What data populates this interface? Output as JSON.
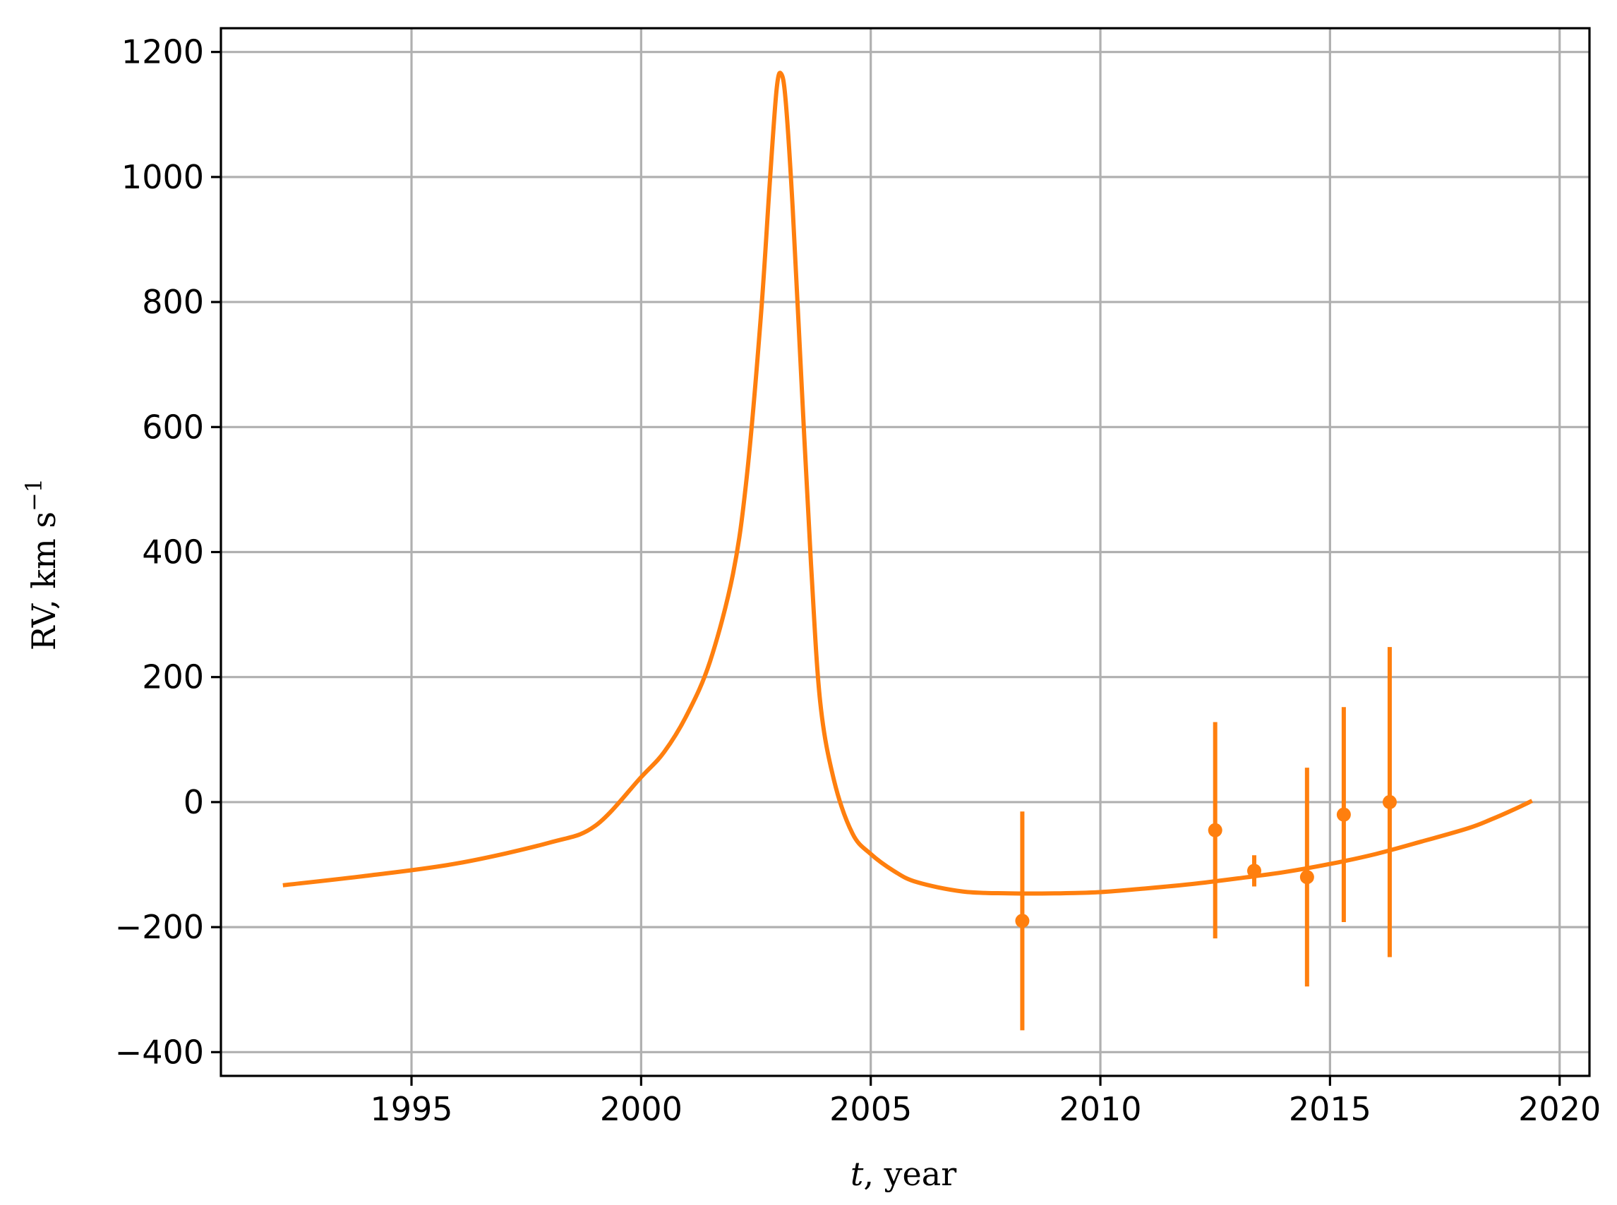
{
  "chart_data": {
    "type": "line",
    "title": "",
    "xlabel": {
      "var": "t",
      "rest": ", year"
    },
    "ylabel": {
      "text": "RV,  km s",
      "sup": "−1"
    },
    "xlim": [
      1990.85,
      2020.65
    ],
    "ylim": [
      -438,
      1238
    ],
    "xticks": [
      1995,
      2000,
      2005,
      2010,
      2015,
      2020
    ],
    "yticks": [
      -400,
      -200,
      0,
      200,
      400,
      600,
      800,
      1000,
      1200
    ],
    "ytick_labels": [
      "−400",
      "−200",
      "0",
      "200",
      "400",
      "600",
      "800",
      "1000",
      "1200"
    ],
    "grid": true,
    "color": "#ff7f0e",
    "model_curve": {
      "x": [
        1992.2,
        1994.0,
        1996.0,
        1998.0,
        1999.0,
        2000.0,
        2000.5,
        2001.0,
        2001.5,
        2002.0,
        2002.3,
        2002.6,
        2002.8,
        2002.95,
        2003.05,
        2003.15,
        2003.3,
        2003.5,
        2003.7,
        2003.9,
        2004.2,
        2004.6,
        2005.0,
        2005.5,
        2006.0,
        2007.0,
        2008.0,
        2009.0,
        2010.0,
        2011.0,
        2012.0,
        2013.0,
        2014.0,
        2015.0,
        2016.0,
        2017.0,
        2018.0,
        2018.5,
        2019.0,
        2019.4
      ],
      "y": [
        -133,
        -118,
        -98,
        -65,
        -38,
        40,
        80,
        140,
        225,
        365,
        520,
        770,
        990,
        1140,
        1165,
        1120,
        950,
        660,
        380,
        160,
        35,
        -50,
        -83,
        -110,
        -128,
        -143,
        -146,
        -146,
        -144,
        -138,
        -131,
        -122,
        -112,
        -99,
        -83,
        -63,
        -42,
        -28,
        -12,
        2
      ]
    },
    "observations": {
      "x": [
        2008.3,
        2012.5,
        2013.35,
        2014.5,
        2015.3,
        2016.3
      ],
      "y": [
        -190,
        -45,
        -110,
        -120,
        -20,
        0
      ],
      "yerr": [
        175,
        173,
        25,
        175,
        172,
        248
      ]
    }
  }
}
